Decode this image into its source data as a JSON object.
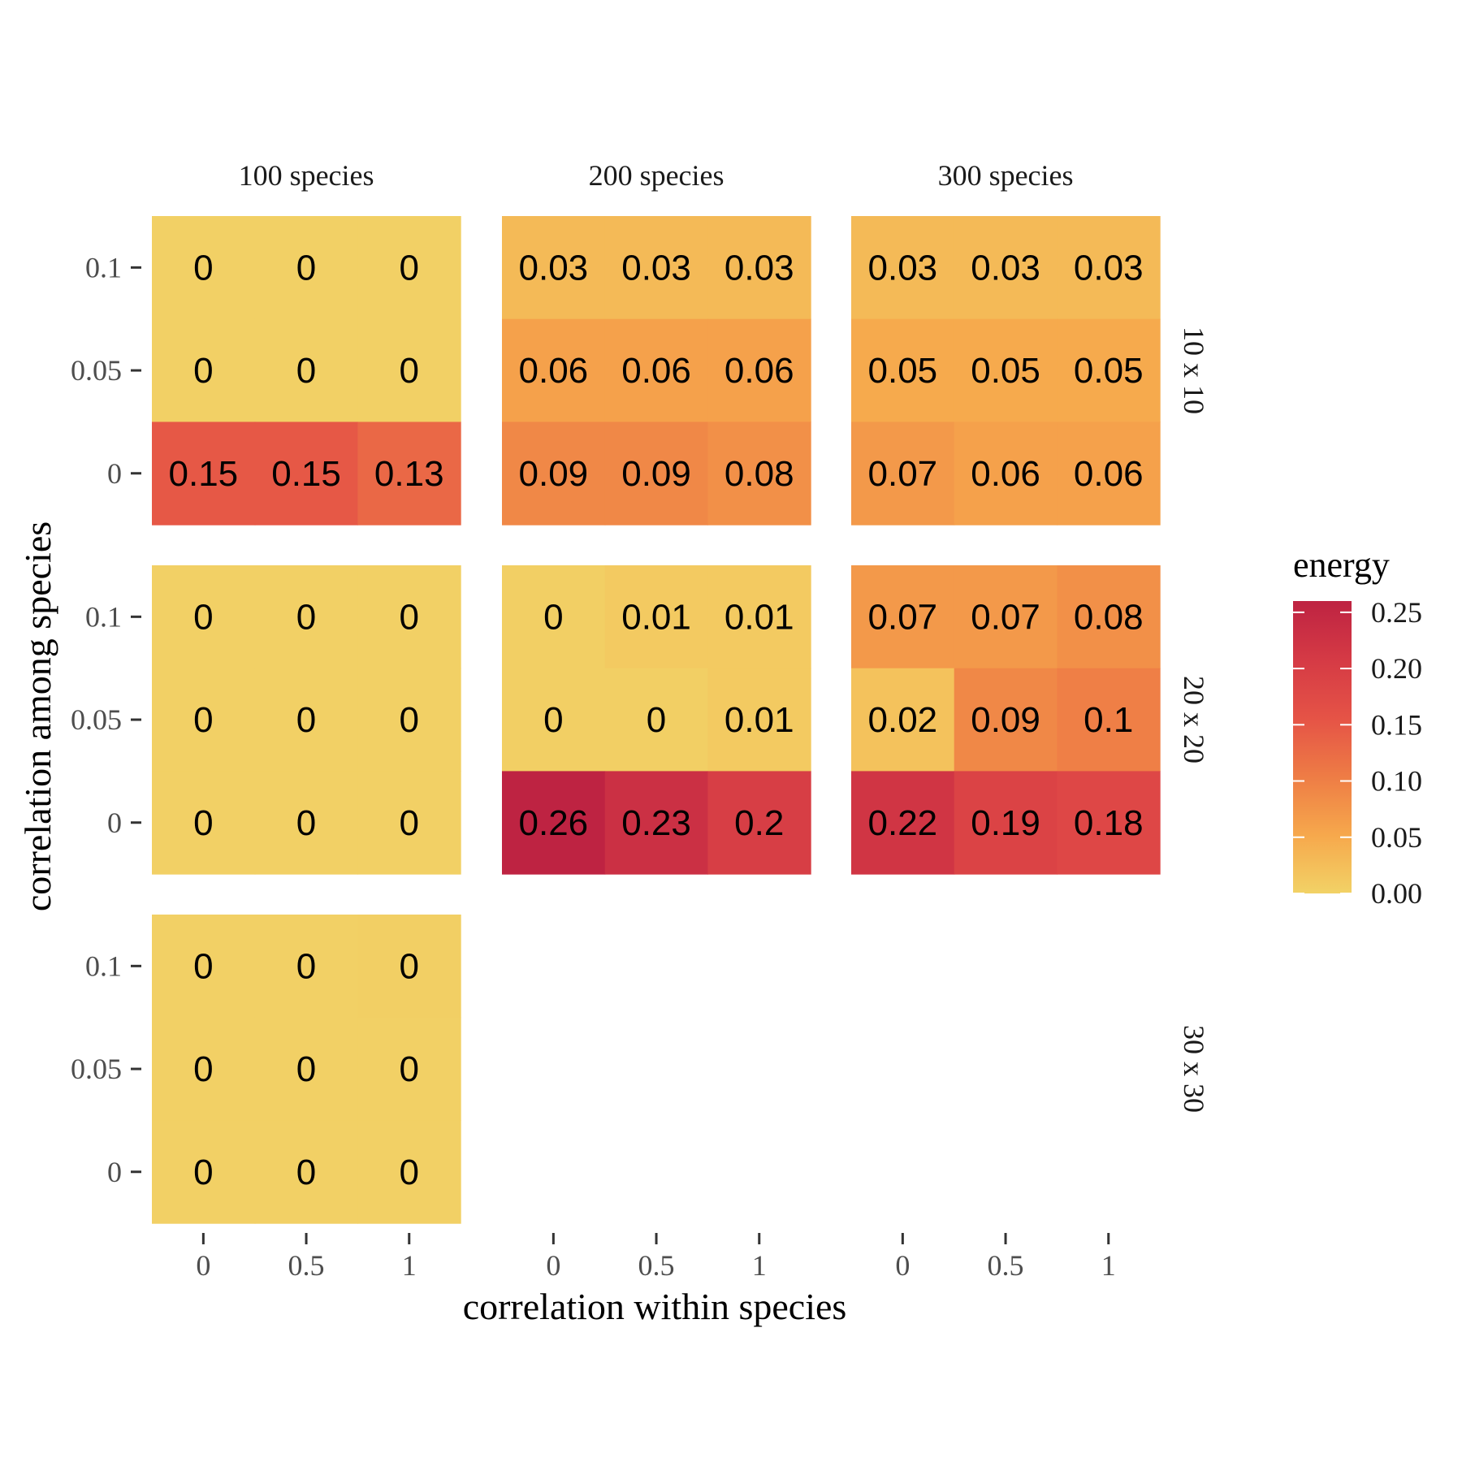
{
  "chart_data": {
    "type": "heatmap",
    "title": "",
    "xlabel": "correlation within species",
    "ylabel": "correlation among species",
    "x_ticks": [
      "0",
      "0.5",
      "1"
    ],
    "y_ticks": [
      "0.1",
      "0.05",
      "0"
    ],
    "col_facets": [
      "100 species",
      "200 species",
      "300 species"
    ],
    "row_facets": [
      "10 x 10",
      "20 x 20",
      "30 x 30"
    ],
    "legend": {
      "title": "energy",
      "placement": "right",
      "range": [
        0,
        0.26
      ],
      "ticks": [
        "0.00",
        "0.05",
        "0.10",
        "0.15",
        "0.20",
        "0.25"
      ],
      "tick_values": [
        0,
        0.05,
        0.1,
        0.15,
        0.2,
        0.25
      ],
      "colors": [
        "#f2d266",
        "#f6a84c",
        "#ee7c45",
        "#e55346",
        "#d53a45",
        "#be2342"
      ]
    },
    "panels": [
      {
        "col": 0,
        "row": 0,
        "values": [
          [
            0.003,
            0.003,
            0.003
          ],
          [
            0.002,
            0.002,
            0.002
          ],
          [
            0.15,
            0.15,
            0.13
          ]
        ],
        "labels": [
          [
            "0",
            "0",
            "0"
          ],
          [
            "0",
            "0",
            "0"
          ],
          [
            "0.15",
            "0.15",
            "0.13"
          ]
        ]
      },
      {
        "col": 1,
        "row": 0,
        "values": [
          [
            0.03,
            0.03,
            0.03
          ],
          [
            0.06,
            0.06,
            0.06
          ],
          [
            0.09,
            0.09,
            0.08
          ]
        ],
        "labels": [
          [
            "0.03",
            "0.03",
            "0.03"
          ],
          [
            "0.06",
            "0.06",
            "0.06"
          ],
          [
            "0.09",
            "0.09",
            "0.08"
          ]
        ]
      },
      {
        "col": 2,
        "row": 0,
        "values": [
          [
            0.03,
            0.03,
            0.03
          ],
          [
            0.05,
            0.05,
            0.05
          ],
          [
            0.07,
            0.06,
            0.06
          ]
        ],
        "labels": [
          [
            "0.03",
            "0.03",
            "0.03"
          ],
          [
            "0.05",
            "0.05",
            "0.05"
          ],
          [
            "0.07",
            "0.06",
            "0.06"
          ]
        ]
      },
      {
        "col": 0,
        "row": 1,
        "values": [
          [
            0.002,
            0.002,
            0.002
          ],
          [
            0.002,
            0.002,
            0.002
          ],
          [
            0.002,
            0.002,
            0.002
          ]
        ],
        "labels": [
          [
            "0",
            "0",
            "0"
          ],
          [
            "0",
            "0",
            "0"
          ],
          [
            "0",
            "0",
            "0"
          ]
        ]
      },
      {
        "col": 1,
        "row": 1,
        "values": [
          [
            0.004,
            0.01,
            0.01
          ],
          [
            0.004,
            0.004,
            0.01
          ],
          [
            0.26,
            0.23,
            0.2
          ]
        ],
        "labels": [
          [
            "0",
            "0.01",
            "0.01"
          ],
          [
            "0",
            "0",
            "0.01"
          ],
          [
            "0.26",
            "0.23",
            "0.2"
          ]
        ]
      },
      {
        "col": 2,
        "row": 1,
        "values": [
          [
            0.07,
            0.07,
            0.08
          ],
          [
            0.02,
            0.09,
            0.1
          ],
          [
            0.22,
            0.19,
            0.18
          ]
        ],
        "labels": [
          [
            "0.07",
            "0.07",
            "0.08"
          ],
          [
            "0.02",
            "0.09",
            "0.1"
          ],
          [
            "0.22",
            "0.19",
            "0.18"
          ]
        ]
      },
      {
        "col": 0,
        "row": 2,
        "values": [
          [
            0.002,
            0.003,
            0.004
          ],
          [
            0.002,
            0.002,
            0.002
          ],
          [
            0.002,
            0.002,
            0.002
          ]
        ],
        "labels": [
          [
            "0",
            "0",
            "0"
          ],
          [
            "0",
            "0",
            "0"
          ],
          [
            "0",
            "0",
            "0"
          ]
        ]
      }
    ]
  }
}
